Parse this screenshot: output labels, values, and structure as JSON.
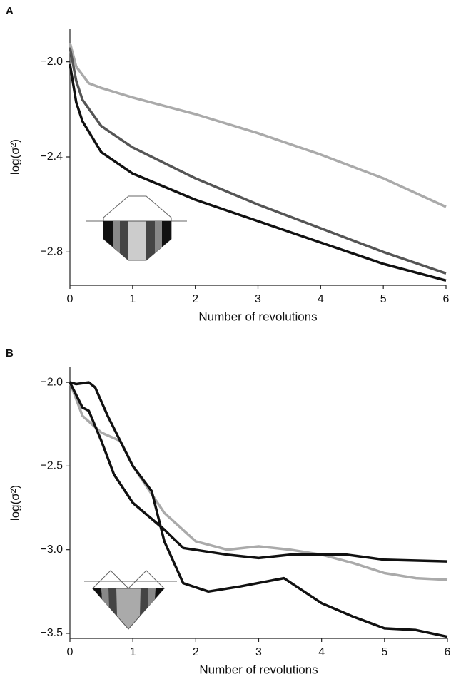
{
  "chart_data": [
    {
      "type": "line",
      "panel_label": "A",
      "x_label": "Number of revolutions",
      "y_label": "log(σ²)",
      "xlim": [
        0,
        6
      ],
      "xticks": [
        0,
        1,
        2,
        3,
        4,
        5,
        6
      ],
      "ylim": [
        -2.94,
        -1.86
      ],
      "yticks": [
        {
          "value": -2.0,
          "label": "−2.0"
        },
        {
          "value": -2.4,
          "label": "−2.4"
        },
        {
          "value": -2.8,
          "label": "−2.8"
        }
      ],
      "series": [
        {
          "color": "#aaaaaa",
          "x": [
            0,
            0.1,
            0.3,
            0.5,
            1,
            2,
            3,
            4,
            5,
            6
          ],
          "values": [
            -1.92,
            -2.02,
            -2.09,
            -2.11,
            -2.15,
            -2.22,
            -2.3,
            -2.39,
            -2.49,
            -2.61
          ]
        },
        {
          "color": "#555555",
          "x": [
            0,
            0.1,
            0.2,
            0.5,
            1,
            2,
            3,
            4,
            5,
            6
          ],
          "values": [
            -1.94,
            -2.08,
            -2.16,
            -2.27,
            -2.36,
            -2.49,
            -2.6,
            -2.7,
            -2.8,
            -2.89
          ]
        },
        {
          "color": "#111111",
          "x": [
            0,
            0.1,
            0.2,
            0.5,
            1,
            2,
            3,
            4,
            5,
            6
          ],
          "values": [
            -2.01,
            -2.17,
            -2.25,
            -2.38,
            -2.47,
            -2.58,
            -2.67,
            -2.76,
            -2.85,
            -2.92
          ]
        }
      ]
    },
    {
      "type": "line",
      "panel_label": "B",
      "x_label": "Number of revolutions",
      "y_label": "log(σ²)",
      "xlim": [
        0,
        6
      ],
      "xticks": [
        0,
        1,
        2,
        3,
        4,
        5,
        6
      ],
      "ylim": [
        -3.53,
        -1.91
      ],
      "yticks": [
        {
          "value": -2.0,
          "label": "−2.0"
        },
        {
          "value": -2.5,
          "label": "−2.5"
        },
        {
          "value": -3.0,
          "label": "−3.0"
        },
        {
          "value": -3.5,
          "label": "−3.5"
        }
      ],
      "series": [
        {
          "color": "#aaaaaa",
          "x": [
            0,
            0.2,
            0.5,
            0.8,
            1,
            1.5,
            2,
            2.5,
            3,
            3.5,
            4,
            4.5,
            5,
            5.5,
            6
          ],
          "values": [
            -2.0,
            -2.2,
            -2.3,
            -2.35,
            -2.5,
            -2.78,
            -2.95,
            -3.0,
            -2.98,
            -3.0,
            -3.03,
            -3.08,
            -3.14,
            -3.17,
            -3.18
          ]
        },
        {
          "color": "#111111",
          "x": [
            0,
            0.1,
            0.3,
            0.4,
            0.6,
            1,
            1.3,
            1.5,
            1.8,
            2.2,
            2.7,
            3.4,
            4,
            4.5,
            5,
            5.5,
            6
          ],
          "values": [
            -2.0,
            -2.01,
            -2.0,
            -2.03,
            -2.2,
            -2.5,
            -2.65,
            -2.95,
            -3.2,
            -3.25,
            -3.22,
            -3.17,
            -3.32,
            -3.4,
            -3.47,
            -3.48,
            -3.52
          ]
        },
        {
          "color": "#111111",
          "x": [
            0,
            0.2,
            0.3,
            0.5,
            0.7,
            1,
            1.5,
            1.8,
            2.5,
            3,
            3.5,
            4.4,
            5,
            6
          ],
          "values": [
            -2.0,
            -2.15,
            -2.17,
            -2.35,
            -2.55,
            -2.72,
            -2.88,
            -2.99,
            -3.03,
            -3.05,
            -3.03,
            -3.03,
            -3.06,
            -3.07
          ]
        }
      ]
    }
  ]
}
